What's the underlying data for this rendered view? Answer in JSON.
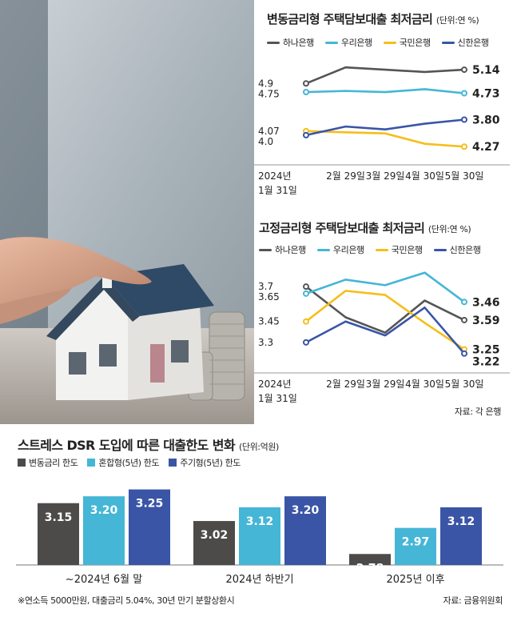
{
  "colors": {
    "hana": "#555555",
    "woori": "#45b6d6",
    "kookmin": "#f5be1a",
    "shinhan": "#3a55a6",
    "dark_bar": "#4d4b49",
    "cyan_bar": "#45b6d6",
    "blue_bar": "#3a55a6"
  },
  "chart_data": [
    {
      "type": "line",
      "title": "변동금리형 주택담보대출 최저금리",
      "unit_label": "(단위:연 %)",
      "categories": [
        "2024년 1월 31일",
        "2월 29일",
        "3월 29일",
        "4월 30일",
        "5월 30일"
      ],
      "x_tick_lines": [
        [
          "2024년",
          "1월 31일"
        ],
        [
          "2월 29일"
        ],
        [
          "3월 29일"
        ],
        [
          "4월 30일"
        ],
        [
          "5월 30일"
        ]
      ],
      "series": [
        {
          "name": "하나은행",
          "values": [
            4.9,
            5.18,
            5.14,
            5.1,
            5.14
          ]
        },
        {
          "name": "우리은행",
          "values": [
            4.75,
            4.77,
            4.75,
            4.8,
            4.73
          ]
        },
        {
          "name": "국민은행",
          "values": [
            4.07,
            4.05,
            4.03,
            3.85,
            3.8
          ]
        },
        {
          "name": "신한은행",
          "values": [
            4.0,
            4.15,
            4.1,
            4.2,
            4.27
          ]
        }
      ],
      "start_labels": [
        "4.9",
        "4.75",
        "4.07",
        "4.0"
      ],
      "end_labels": [
        "5.14",
        "4.73",
        "4.27",
        "3.80"
      ],
      "ylim": [
        3.65,
        5.35
      ]
    },
    {
      "type": "line",
      "title": "고정금리형 주택담보대출 최저금리",
      "unit_label": "(단위:연 %)",
      "categories": [
        "2024년 1월 31일",
        "2월 29일",
        "3월 29일",
        "4월 30일",
        "5월 30일"
      ],
      "x_tick_lines": [
        [
          "2024년",
          "1월 31일"
        ],
        [
          "2월 29일"
        ],
        [
          "3월 29일"
        ],
        [
          "4월 30일"
        ],
        [
          "5월 30일"
        ]
      ],
      "series": [
        {
          "name": "하나은행",
          "values": [
            3.7,
            3.48,
            3.37,
            3.6,
            3.46
          ]
        },
        {
          "name": "우리은행",
          "values": [
            3.65,
            3.75,
            3.71,
            3.8,
            3.59
          ]
        },
        {
          "name": "국민은행",
          "values": [
            3.45,
            3.67,
            3.64,
            3.44,
            3.25
          ]
        },
        {
          "name": "신한은행",
          "values": [
            3.3,
            3.45,
            3.35,
            3.55,
            3.22
          ]
        }
      ],
      "start_labels": [
        "3.7",
        "3.65",
        "3.45",
        "3.3"
      ],
      "end_labels": [
        "3.59",
        "3.46",
        "3.25",
        "3.22"
      ],
      "ylim": [
        3.15,
        3.85
      ]
    },
    {
      "type": "bar",
      "title": "스트레스 DSR 도입에 따른 대출한도 변화",
      "unit_label": "(단위:억원)",
      "categories": [
        "~2024년 6월 말",
        "2024년 하반기",
        "2025년 이후"
      ],
      "series": [
        {
          "name": "변동금리 한도",
          "values": [
            3.15,
            3.02,
            2.78
          ]
        },
        {
          "name": "혼합형(5년) 한도",
          "values": [
            3.2,
            3.12,
            2.97
          ]
        },
        {
          "name": "주기형(5년) 한도",
          "values": [
            3.25,
            3.2,
            3.12
          ]
        }
      ],
      "value_labels": [
        [
          "3.15",
          "3.02",
          "2.78"
        ],
        [
          "3.20",
          "3.12",
          "2.97"
        ],
        [
          "3.25",
          "3.20",
          "3.12"
        ]
      ],
      "ylim": [
        2.7,
        3.3
      ]
    }
  ],
  "source_top": "자료: 각 은행",
  "footnote": "※연소득 5000만원, 대출금리 5.04%, 30년 만기 분할상환시",
  "source_bottom": "자료: 금융위원회",
  "photo_icon": "house-model-photo"
}
